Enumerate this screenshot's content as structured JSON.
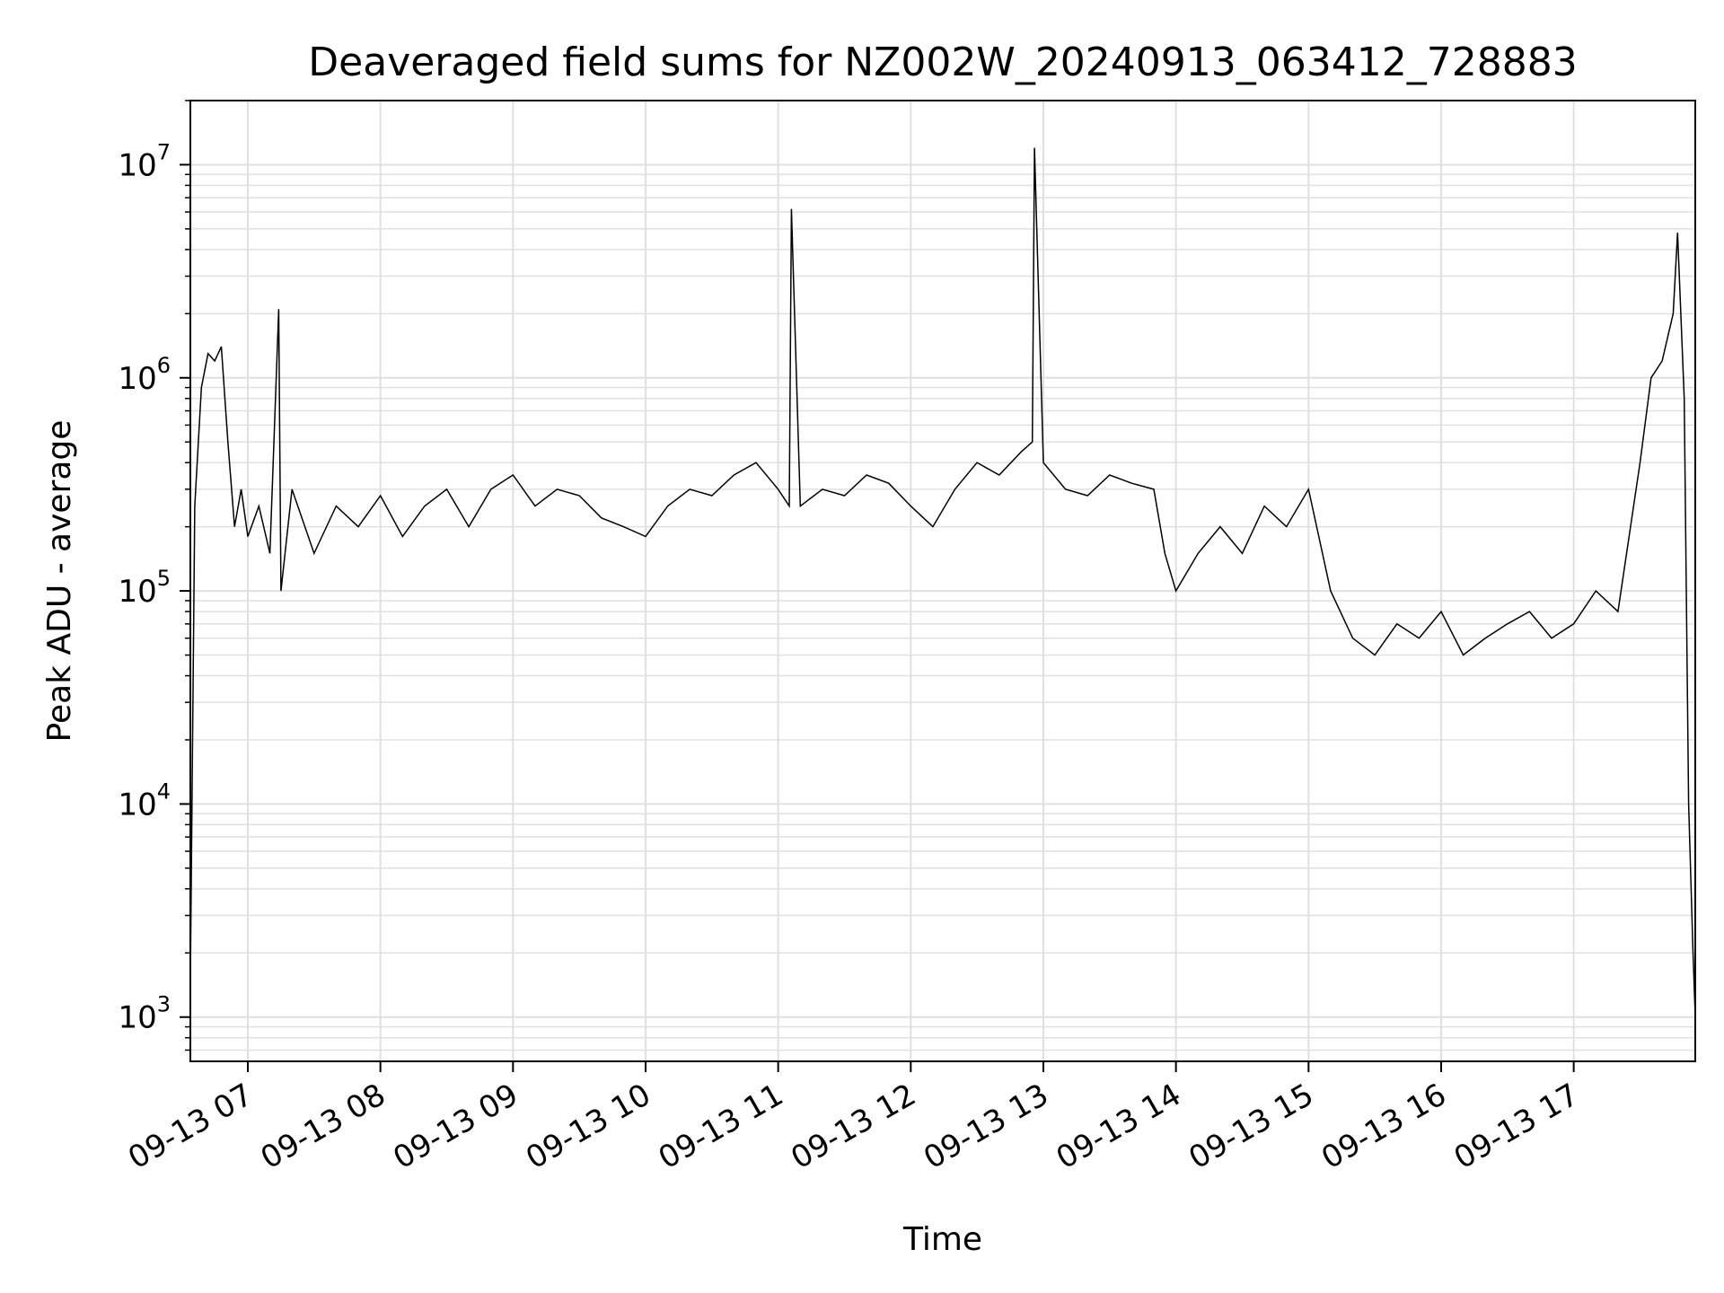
{
  "chart_data": {
    "type": "line",
    "title": "Deaveraged field sums for NZ002W_20240913_063412_728883",
    "xlabel": "Time",
    "ylabel": "Peak ADU - average",
    "yscale": "log",
    "ylim": [
      620,
      20000000
    ],
    "xlim": [
      "2024-09-13 06:34",
      "2024-09-13 17:55"
    ],
    "grid": true,
    "line_color": "#000000",
    "grid_color": "#e0e0e0",
    "x_ticks": [
      "09-13 07",
      "09-13 08",
      "09-13 09",
      "09-13 10",
      "09-13 11",
      "09-13 12",
      "09-13 13",
      "09-13 14",
      "09-13 15",
      "09-13 16",
      "09-13 17"
    ],
    "y_ticks": [
      {
        "value": 1000,
        "base": "10",
        "exp": "3"
      },
      {
        "value": 10000,
        "base": "10",
        "exp": "4"
      },
      {
        "value": 100000,
        "base": "10",
        "exp": "5"
      },
      {
        "value": 1000000,
        "base": "10",
        "exp": "6"
      },
      {
        "value": 10000000,
        "base": "10",
        "exp": "7"
      }
    ],
    "series": [
      {
        "x": [
          "2024-09-13 06:34",
          "2024-09-13 06:36",
          "2024-09-13 06:39",
          "2024-09-13 06:42",
          "2024-09-13 06:45",
          "2024-09-13 06:48",
          "2024-09-13 06:51",
          "2024-09-13 06:54",
          "2024-09-13 06:57",
          "2024-09-13 07:00",
          "2024-09-13 07:05",
          "2024-09-13 07:10",
          "2024-09-13 07:14",
          "2024-09-13 07:15",
          "2024-09-13 07:20",
          "2024-09-13 07:30",
          "2024-09-13 07:40",
          "2024-09-13 07:50",
          "2024-09-13 08:00",
          "2024-09-13 08:10",
          "2024-09-13 08:20",
          "2024-09-13 08:30",
          "2024-09-13 08:40",
          "2024-09-13 08:50",
          "2024-09-13 09:00",
          "2024-09-13 09:10",
          "2024-09-13 09:20",
          "2024-09-13 09:30",
          "2024-09-13 09:40",
          "2024-09-13 09:50",
          "2024-09-13 10:00",
          "2024-09-13 10:10",
          "2024-09-13 10:20",
          "2024-09-13 10:30",
          "2024-09-13 10:40",
          "2024-09-13 10:50",
          "2024-09-13 11:00",
          "2024-09-13 11:05",
          "2024-09-13 11:06",
          "2024-09-13 11:10",
          "2024-09-13 11:20",
          "2024-09-13 11:30",
          "2024-09-13 11:40",
          "2024-09-13 11:50",
          "2024-09-13 12:00",
          "2024-09-13 12:10",
          "2024-09-13 12:20",
          "2024-09-13 12:30",
          "2024-09-13 12:40",
          "2024-09-13 12:50",
          "2024-09-13 12:55",
          "2024-09-13 12:56",
          "2024-09-13 13:00",
          "2024-09-13 13:10",
          "2024-09-13 13:20",
          "2024-09-13 13:30",
          "2024-09-13 13:40",
          "2024-09-13 13:50",
          "2024-09-13 13:55",
          "2024-09-13 14:00",
          "2024-09-13 14:10",
          "2024-09-13 14:20",
          "2024-09-13 14:30",
          "2024-09-13 14:40",
          "2024-09-13 14:50",
          "2024-09-13 15:00",
          "2024-09-13 15:10",
          "2024-09-13 15:20",
          "2024-09-13 15:30",
          "2024-09-13 15:40",
          "2024-09-13 15:50",
          "2024-09-13 16:00",
          "2024-09-13 16:10",
          "2024-09-13 16:20",
          "2024-09-13 16:30",
          "2024-09-13 16:40",
          "2024-09-13 16:50",
          "2024-09-13 17:00",
          "2024-09-13 17:10",
          "2024-09-13 17:20",
          "2024-09-13 17:30",
          "2024-09-13 17:35",
          "2024-09-13 17:40",
          "2024-09-13 17:45",
          "2024-09-13 17:47",
          "2024-09-13 17:50",
          "2024-09-13 17:52",
          "2024-09-13 17:54",
          "2024-09-13 17:55"
        ],
        "y": [
          1500,
          250000,
          900000,
          1300000,
          1200000,
          1400000,
          500000,
          200000,
          300000,
          180000,
          250000,
          150000,
          2100000,
          100000,
          300000,
          150000,
          250000,
          200000,
          280000,
          180000,
          250000,
          300000,
          200000,
          300000,
          350000,
          250000,
          300000,
          280000,
          220000,
          200000,
          180000,
          250000,
          300000,
          280000,
          350000,
          400000,
          300000,
          250000,
          6200000,
          250000,
          300000,
          280000,
          350000,
          320000,
          250000,
          200000,
          300000,
          400000,
          350000,
          450000,
          500000,
          12000000,
          400000,
          300000,
          280000,
          350000,
          320000,
          300000,
          150000,
          100000,
          150000,
          200000,
          150000,
          250000,
          200000,
          300000,
          100000,
          60000,
          50000,
          70000,
          60000,
          80000,
          50000,
          60000,
          70000,
          80000,
          60000,
          70000,
          100000,
          80000,
          400000,
          1000000,
          1200000,
          2000000,
          4800000,
          800000,
          10000,
          2000,
          1000
        ]
      }
    ]
  }
}
